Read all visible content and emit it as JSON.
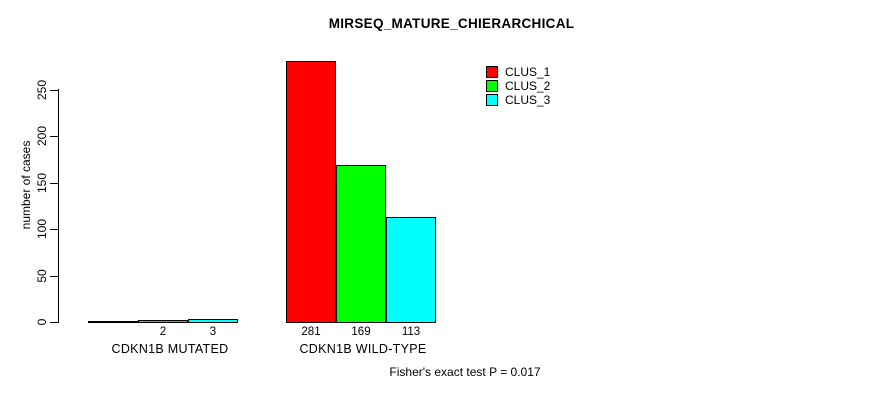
{
  "title": "MIRSEQ_MATURE_CHIERARCHICAL",
  "footer": "Fisher's exact test P = 0.017",
  "y_axis": {
    "label": "number of cases",
    "ticks": [
      0,
      50,
      100,
      150,
      200,
      250
    ]
  },
  "legend": [
    {
      "label": "CLUS_1",
      "color": "#ff0000"
    },
    {
      "label": "CLUS_2",
      "color": "#00ff00"
    },
    {
      "label": "CLUS_3",
      "color": "#00ffff"
    }
  ],
  "chart_data": {
    "type": "bar",
    "title": "MIRSEQ_MATURE_CHIERARCHICAL",
    "xlabel": "",
    "ylabel": "number of cases",
    "ylim": [
      0,
      283
    ],
    "grid": false,
    "legend_position": "top-right",
    "categories": [
      "CDKN1B MUTATED",
      "CDKN1B WILD-TYPE"
    ],
    "series": [
      {
        "name": "CLUS_1",
        "color": "#ff0000",
        "values": [
          1,
          281
        ]
      },
      {
        "name": "CLUS_2",
        "color": "#00ff00",
        "values": [
          2,
          169
        ]
      },
      {
        "name": "CLUS_3",
        "color": "#00ffff",
        "values": [
          3,
          113
        ]
      }
    ],
    "bar_value_labels": [
      [
        "",
        "2",
        "3"
      ],
      [
        "281",
        "169",
        "113"
      ]
    ],
    "annotation": "Fisher's exact test P = 0.017"
  }
}
